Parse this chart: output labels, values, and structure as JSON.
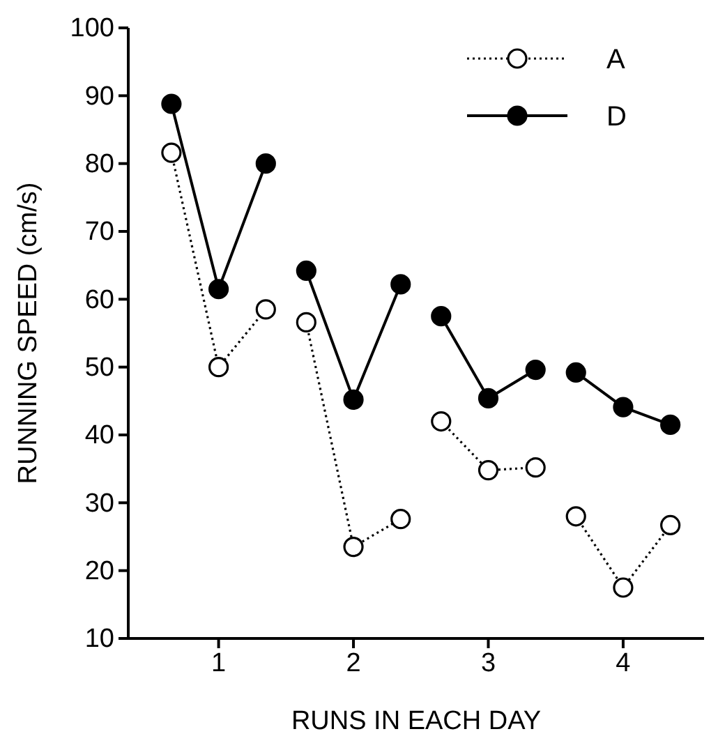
{
  "chart_data": {
    "type": "line",
    "xlabel": "RUNS IN EACH DAY",
    "ylabel": "RUNNING SPEED (cm/s)",
    "x": [
      0.65,
      1,
      1.35,
      1.5,
      1.65,
      2,
      2.35,
      2.5,
      2.65,
      3,
      3.35,
      3.5,
      3.65,
      4,
      4.35
    ],
    "series": [
      {
        "name": "A",
        "color": "#000000",
        "line_style": "dotted",
        "values": [
          81.6,
          50,
          58.5,
          null,
          56.6,
          23.5,
          27.6,
          null,
          42,
          34.8,
          35.2,
          null,
          28,
          17.5,
          26.7
        ]
      },
      {
        "name": "D",
        "color": "#000000",
        "line_style": "solid",
        "values": [
          88.8,
          61.5,
          80,
          null,
          64.2,
          45.2,
          62.2,
          null,
          57.5,
          45.4,
          49.6,
          null,
          49.2,
          44.1,
          41.5
        ]
      }
    ],
    "xlim": [
      0.33,
      4.6
    ],
    "xticks": [
      1,
      2,
      3,
      4
    ],
    "ylim": [
      10,
      100
    ],
    "yticks": [
      10,
      20,
      30,
      40,
      50,
      60,
      70,
      80,
      90,
      100
    ],
    "marker": "circle",
    "legend": "top right",
    "grid": false
  }
}
